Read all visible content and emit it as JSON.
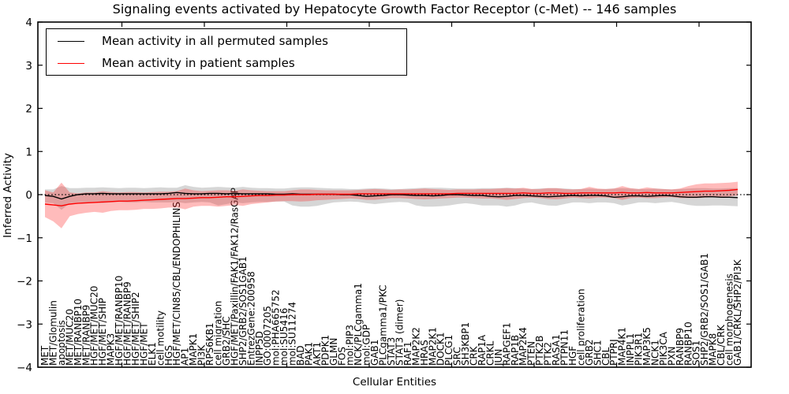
{
  "title": "Signaling events activated by Hepatocyte Growth Factor Receptor (c-Met) -- 146 samples",
  "axes": {
    "ylabel": "Inferred Activity",
    "xlabel": "Cellular Entities"
  },
  "legend": {
    "items": [
      {
        "label": "Mean activity in all permuted samples",
        "color": "#000000"
      },
      {
        "label": "Mean activity in patient samples",
        "color": "#ff0000"
      }
    ]
  },
  "chart_data": {
    "type": "line",
    "title": "Signaling events activated by Hepatocyte Growth Factor Receptor (c-Met) -- 146 samples",
    "xlabel": "Cellular Entities",
    "ylabel": "Inferred Activity",
    "ylim": [
      -4,
      4
    ],
    "yticks": [
      4,
      3,
      2,
      1,
      0,
      -1,
      -2,
      -3,
      -4
    ],
    "grid": false,
    "legend_position": "upper left",
    "zero_line": true,
    "categories": [
      "MET",
      "MET/Glomulin",
      "apoptosis",
      "MET/MUC20",
      "MET/RANBP10",
      "MET/RANBP9",
      "HGF/MET/MUC20",
      "HGF/MET/SHIP",
      "MAPK3",
      "HGF/MET/RANBP10",
      "HGF/MET/RANBP9",
      "HGF/MET/SHIP2",
      "HGF/MET",
      "ELK1",
      "cell motility",
      "HGS",
      "HGF/MET/CIN85/CBL/ENDOPHILINS",
      "AP1",
      "MAPK1",
      "PI3K",
      "RPS6KB1",
      "cell migration",
      "GRB2/SHC",
      "HGF/MET/Paxillin/FAK1/FAK12/RasGAP",
      "SHP2/GRB2/SOS1GAB1",
      "EntrezGene:200958",
      "INPP5D",
      "GO:0007205",
      "mol:PHA665752",
      "mol:SU5416",
      "mol:SU11274",
      "BAD",
      "PAK1",
      "AKT1",
      "PDPK1",
      "GLMN",
      "FOS",
      "mol:PIP3",
      "NCK/PLCgamma1",
      "mol:GDP",
      "GAB1",
      "PLCgamma1/PKC",
      "STAT3",
      "STAT3 (dimer)",
      "RAF1",
      "MAP2K2",
      "HRAS",
      "MAP2K1",
      "DOCK1",
      "PLCG1",
      "SRC",
      "SH3KBP1",
      "CRK",
      "RAP1A",
      "CRKL",
      "JUN",
      "RAPGEF1",
      "RAP1B",
      "MAP2K4",
      "PTEN",
      "PTK2B",
      "PTK2",
      "RASA1",
      "PTPN11",
      "HGF",
      "cell proliferation",
      "GRB2",
      "SHC1",
      "CBL",
      "PTPRJ",
      "MAP4K1",
      "INPPL1",
      "PIK3R1",
      "MAP3K5",
      "NCK1",
      "PIK3CA",
      "PXN",
      "RANBP9",
      "RANBP10",
      "SOS1",
      "SHP2/GRB2/SOS1/GAB1",
      "MAPK8",
      "CBL/CRK",
      "cell morphogenesis",
      "GAB1/CRKL/SHP2/PI3K"
    ],
    "series": [
      {
        "name": "Mean activity in all permuted samples",
        "color": "#000000",
        "values": [
          -0.02,
          -0.04,
          -0.1,
          -0.04,
          0.0,
          0.02,
          0.02,
          0.03,
          0.02,
          0.02,
          0.02,
          0.02,
          0.02,
          0.02,
          0.02,
          0.03,
          0.05,
          0.03,
          0.02,
          0.02,
          0.03,
          0.03,
          0.02,
          0.03,
          0.02,
          0.02,
          0.02,
          0.02,
          0.01,
          0.01,
          0.02,
          0.01,
          0.01,
          0.01,
          0.01,
          0.01,
          0.0,
          0.0,
          -0.02,
          -0.04,
          -0.03,
          -0.02,
          0.0,
          0.0,
          -0.01,
          -0.02,
          -0.02,
          -0.03,
          -0.02,
          0.0,
          0.0,
          -0.01,
          -0.02,
          -0.02,
          -0.04,
          -0.05,
          -0.04,
          -0.02,
          -0.02,
          -0.03,
          -0.04,
          -0.05,
          -0.04,
          -0.03,
          -0.02,
          -0.03,
          -0.02,
          -0.02,
          -0.03,
          -0.06,
          -0.05,
          -0.03,
          -0.03,
          -0.04,
          -0.03,
          -0.02,
          -0.03,
          -0.05,
          -0.06,
          -0.06,
          -0.05,
          -0.05,
          -0.06,
          -0.06,
          -0.07
        ]
      },
      {
        "name": "Mean activity in patient samples",
        "color": "#ff0000",
        "values": [
          -0.22,
          -0.24,
          -0.26,
          -0.22,
          -0.2,
          -0.19,
          -0.18,
          -0.17,
          -0.16,
          -0.15,
          -0.15,
          -0.14,
          -0.13,
          -0.12,
          -0.11,
          -0.1,
          -0.09,
          -0.09,
          -0.08,
          -0.07,
          -0.07,
          -0.06,
          -0.05,
          -0.05,
          -0.04,
          -0.03,
          -0.02,
          -0.02,
          -0.01,
          -0.01,
          0.0,
          0.0,
          0.0,
          0.01,
          0.01,
          0.01,
          0.01,
          0.01,
          0.02,
          0.02,
          0.02,
          0.02,
          0.02,
          0.02,
          0.02,
          0.02,
          0.02,
          0.02,
          0.02,
          0.02,
          0.03,
          0.03,
          0.03,
          0.03,
          0.03,
          0.03,
          0.03,
          0.03,
          0.04,
          0.03,
          0.03,
          0.04,
          0.04,
          0.03,
          0.03,
          0.04,
          0.04,
          0.04,
          0.04,
          0.04,
          0.05,
          0.04,
          0.04,
          0.05,
          0.04,
          0.04,
          0.04,
          0.05,
          0.06,
          0.07,
          0.08,
          0.08,
          0.09,
          0.1,
          0.12
        ]
      }
    ],
    "bands": [
      {
        "name": "permuted samples range",
        "color": "rgba(120,120,120,0.30)",
        "upper": [
          0.12,
          0.12,
          0.2,
          0.15,
          0.15,
          0.16,
          0.16,
          0.17,
          0.16,
          0.15,
          0.16,
          0.16,
          0.15,
          0.16,
          0.17,
          0.16,
          0.16,
          0.22,
          0.18,
          0.16,
          0.17,
          0.18,
          0.17,
          0.16,
          0.18,
          0.16,
          0.15,
          0.15,
          0.14,
          0.14,
          0.16,
          0.17,
          0.17,
          0.16,
          0.15,
          0.14,
          0.14,
          0.13,
          0.13,
          0.14,
          0.15,
          0.14,
          0.13,
          0.13,
          0.14,
          0.15,
          0.16,
          0.16,
          0.16,
          0.15,
          0.14,
          0.14,
          0.14,
          0.15,
          0.15,
          0.15,
          0.16,
          0.15,
          0.14,
          0.13,
          0.14,
          0.15,
          0.15,
          0.14,
          0.13,
          0.13,
          0.14,
          0.13,
          0.13,
          0.14,
          0.15,
          0.14,
          0.13,
          0.13,
          0.14,
          0.13,
          0.12,
          0.13,
          0.14,
          0.15,
          0.15,
          0.14,
          0.14,
          0.15,
          0.15
        ],
        "lower": [
          -0.18,
          -0.2,
          -0.35,
          -0.2,
          -0.18,
          -0.18,
          -0.18,
          -0.2,
          -0.18,
          -0.17,
          -0.18,
          -0.18,
          -0.17,
          -0.18,
          -0.18,
          -0.18,
          -0.17,
          -0.2,
          -0.18,
          -0.17,
          -0.18,
          -0.25,
          -0.22,
          -0.18,
          -0.2,
          -0.18,
          -0.17,
          -0.17,
          -0.16,
          -0.16,
          -0.25,
          -0.28,
          -0.28,
          -0.26,
          -0.22,
          -0.18,
          -0.17,
          -0.16,
          -0.17,
          -0.2,
          -0.22,
          -0.2,
          -0.18,
          -0.17,
          -0.18,
          -0.25,
          -0.28,
          -0.28,
          -0.27,
          -0.25,
          -0.22,
          -0.2,
          -0.22,
          -0.25,
          -0.25,
          -0.25,
          -0.28,
          -0.25,
          -0.2,
          -0.18,
          -0.22,
          -0.25,
          -0.26,
          -0.22,
          -0.18,
          -0.18,
          -0.2,
          -0.18,
          -0.18,
          -0.2,
          -0.25,
          -0.22,
          -0.18,
          -0.18,
          -0.2,
          -0.18,
          -0.17,
          -0.2,
          -0.24,
          -0.26,
          -0.26,
          -0.25,
          -0.25,
          -0.26,
          -0.27
        ]
      },
      {
        "name": "patient samples range",
        "color": "rgba(255,30,30,0.30)",
        "upper": [
          0.1,
          0.05,
          0.28,
          0.05,
          0.03,
          0.05,
          0.05,
          0.08,
          0.06,
          0.05,
          0.06,
          0.06,
          0.05,
          0.06,
          0.07,
          0.07,
          0.08,
          0.14,
          0.1,
          0.08,
          0.09,
          0.1,
          0.1,
          0.09,
          0.12,
          0.1,
          0.09,
          0.08,
          0.08,
          0.08,
          0.1,
          0.12,
          0.12,
          0.11,
          0.1,
          0.1,
          0.1,
          0.1,
          0.11,
          0.12,
          0.13,
          0.12,
          0.11,
          0.12,
          0.12,
          0.13,
          0.14,
          0.13,
          0.12,
          0.11,
          0.12,
          0.12,
          0.12,
          0.13,
          0.13,
          0.14,
          0.15,
          0.14,
          0.16,
          0.13,
          0.13,
          0.15,
          0.15,
          0.13,
          0.12,
          0.13,
          0.18,
          0.14,
          0.13,
          0.14,
          0.2,
          0.15,
          0.13,
          0.17,
          0.14,
          0.13,
          0.12,
          0.14,
          0.2,
          0.24,
          0.26,
          0.26,
          0.27,
          0.28,
          0.3
        ],
        "lower": [
          -0.52,
          -0.62,
          -0.78,
          -0.5,
          -0.45,
          -0.42,
          -0.4,
          -0.42,
          -0.38,
          -0.36,
          -0.36,
          -0.35,
          -0.33,
          -0.33,
          -0.32,
          -0.3,
          -0.3,
          -0.34,
          -0.28,
          -0.26,
          -0.26,
          -0.28,
          -0.26,
          -0.24,
          -0.26,
          -0.22,
          -0.2,
          -0.18,
          -0.16,
          -0.15,
          -0.15,
          -0.16,
          -0.15,
          -0.13,
          -0.12,
          -0.11,
          -0.1,
          -0.09,
          -0.1,
          -0.12,
          -0.12,
          -0.1,
          -0.08,
          -0.08,
          -0.09,
          -0.1,
          -0.11,
          -0.1,
          -0.09,
          -0.08,
          -0.07,
          -0.07,
          -0.08,
          -0.09,
          -0.09,
          -0.1,
          -0.12,
          -0.1,
          -0.08,
          -0.07,
          -0.08,
          -0.1,
          -0.11,
          -0.09,
          -0.07,
          -0.08,
          -0.09,
          -0.07,
          -0.07,
          -0.08,
          -0.12,
          -0.08,
          -0.07,
          -0.08,
          -0.08,
          -0.07,
          -0.06,
          -0.08,
          -0.08,
          -0.08,
          -0.07,
          -0.06,
          -0.05,
          -0.04,
          -0.02
        ]
      }
    ]
  }
}
